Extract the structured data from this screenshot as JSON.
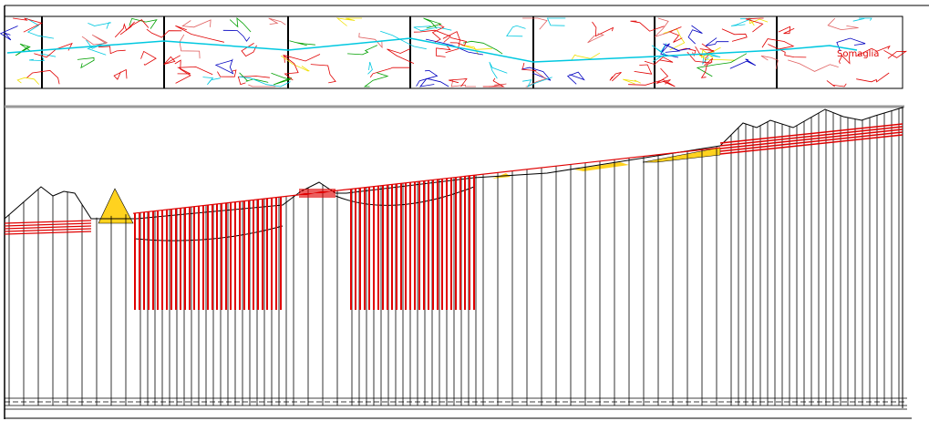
{
  "map_strip": {
    "place_label": "Somaglia"
  }
}
